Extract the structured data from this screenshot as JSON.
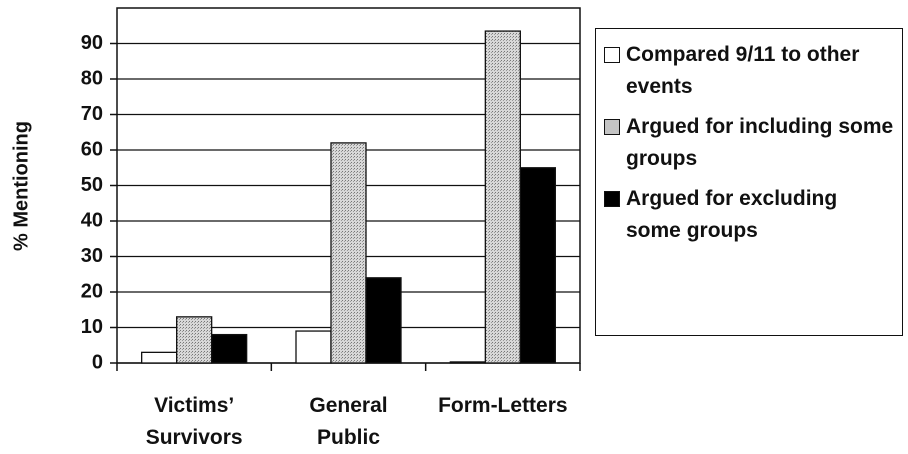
{
  "chart_data": {
    "type": "bar",
    "y_label": "% Mentioning",
    "categories": [
      "Victims’ Survivors",
      "General Public",
      "Form-Letters"
    ],
    "series": [
      {
        "name": "Compared 9/11 to other events",
        "color": "#ffffff",
        "values": [
          3,
          9,
          0.3
        ]
      },
      {
        "name": "Argued for including some groups",
        "color": "#c4c4c4",
        "values": [
          13,
          62,
          93.5
        ]
      },
      {
        "name": "Argued for excluding some groups",
        "color": "#000000",
        "values": [
          8,
          24,
          55
        ]
      }
    ],
    "ylim": [
      0,
      100
    ],
    "yticks": [
      0,
      10,
      20,
      30,
      40,
      50,
      60,
      70,
      80,
      90
    ],
    "grid": true
  }
}
